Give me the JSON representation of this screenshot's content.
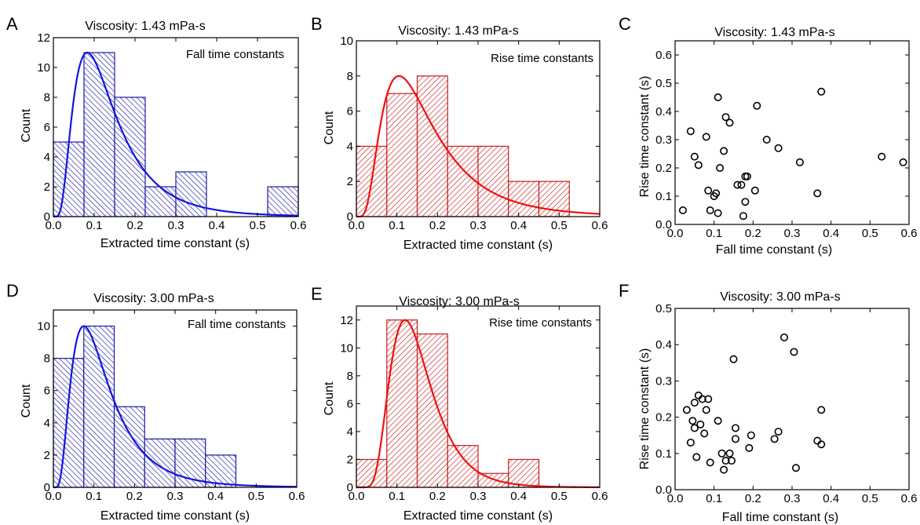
{
  "figure": {
    "panels": [
      {
        "letter": "A",
        "title": "Viscosity: 1.43 mPa-s",
        "annotation": "Fall time constants",
        "xlabel": "Extracted time constant (s)",
        "ylabel": "Count",
        "color": "#1a1aa8",
        "curve_color": "#1414e0"
      },
      {
        "letter": "B",
        "title": "Viscosity: 1.43 mPa-s",
        "annotation": "Rise time constants",
        "xlabel": "Extracted time constant (s)",
        "ylabel": "Count",
        "color": "#c81e1e",
        "curve_color": "#ee1111"
      },
      {
        "letter": "C",
        "title": "Viscosity: 1.43 mPa-s",
        "annotation": "",
        "xlabel": "Fall time constant (s)",
        "ylabel": "Rise time constant (s)",
        "color": "#000000",
        "curve_color": ""
      },
      {
        "letter": "D",
        "title": "Viscosity: 3.00 mPa-s",
        "annotation": "Fall time constants",
        "xlabel": "Extracted time constant (s)",
        "ylabel": "Count",
        "color": "#1a1aa8",
        "curve_color": "#1414e0"
      },
      {
        "letter": "E",
        "title": "Viscosity: 3.00 mPa-s",
        "annotation": "Rise time constants",
        "xlabel": "Extracted time constant (s)",
        "ylabel": "Count",
        "color": "#c81e1e",
        "curve_color": "#ee1111"
      },
      {
        "letter": "F",
        "title": "Viscosity: 3.00 mPa-s",
        "annotation": "",
        "xlabel": "Fall time constant (s)",
        "ylabel": "Rise time constant (s)",
        "color": "#000000",
        "curve_color": ""
      }
    ]
  },
  "chart_data": [
    {
      "type": "bar",
      "bin_edges": [
        0.0,
        0.075,
        0.15,
        0.225,
        0.3,
        0.375,
        0.45,
        0.525,
        0.6
      ],
      "values": [
        5,
        11,
        8,
        2,
        3,
        0,
        0,
        2
      ],
      "fit_curve": {
        "type": "log-normal",
        "peak_x": 0.083,
        "peak_y": 11,
        "x": [
          0.0,
          0.6
        ]
      },
      "xlim": [
        0,
        0.6
      ],
      "ylim": [
        0,
        12
      ],
      "xticks": [
        0.0,
        0.1,
        0.2,
        0.3,
        0.4,
        0.5,
        0.6
      ],
      "yticks": [
        0,
        2,
        4,
        6,
        8,
        10,
        12
      ]
    },
    {
      "type": "bar",
      "bin_edges": [
        0.0,
        0.075,
        0.15,
        0.225,
        0.3,
        0.375,
        0.45,
        0.525,
        0.6
      ],
      "values": [
        4,
        7,
        8,
        4,
        4,
        2,
        2,
        0
      ],
      "fit_curve": {
        "type": "log-normal",
        "peak_x": 0.105,
        "peak_y": 8,
        "x": [
          0.0,
          0.6
        ]
      },
      "xlim": [
        0,
        0.6
      ],
      "ylim": [
        0,
        10
      ],
      "xticks": [
        0.0,
        0.1,
        0.2,
        0.3,
        0.4,
        0.5,
        0.6
      ],
      "yticks": [
        0,
        2,
        4,
        6,
        8,
        10
      ]
    },
    {
      "type": "scatter",
      "x": [
        0.02,
        0.04,
        0.05,
        0.06,
        0.08,
        0.085,
        0.09,
        0.1,
        0.105,
        0.11,
        0.11,
        0.115,
        0.125,
        0.13,
        0.14,
        0.16,
        0.17,
        0.175,
        0.18,
        0.18,
        0.185,
        0.205,
        0.21,
        0.235,
        0.265,
        0.32,
        0.365,
        0.375,
        0.53,
        0.585
      ],
      "y": [
        0.05,
        0.33,
        0.24,
        0.21,
        0.31,
        0.12,
        0.05,
        0.1,
        0.11,
        0.45,
        0.04,
        0.2,
        0.26,
        0.38,
        0.36,
        0.14,
        0.14,
        0.03,
        0.17,
        0.08,
        0.17,
        0.12,
        0.42,
        0.3,
        0.27,
        0.22,
        0.11,
        0.47,
        0.24,
        0.22
      ],
      "xlim": [
        0,
        0.6
      ],
      "ylim": [
        0,
        0.65
      ],
      "xticks": [
        0.0,
        0.1,
        0.2,
        0.3,
        0.4,
        0.5,
        0.6
      ],
      "yticks": [
        0.0,
        0.1,
        0.2,
        0.3,
        0.4,
        0.5,
        0.6
      ]
    },
    {
      "type": "bar",
      "bin_edges": [
        0.0,
        0.075,
        0.15,
        0.225,
        0.3,
        0.375,
        0.45,
        0.525,
        0.6
      ],
      "values": [
        8,
        10,
        5,
        3,
        3,
        2,
        0,
        0
      ],
      "fit_curve": {
        "type": "log-normal",
        "peak_x": 0.075,
        "peak_y": 10,
        "x": [
          0.0,
          0.6
        ]
      },
      "xlim": [
        0,
        0.6
      ],
      "ylim": [
        0,
        11
      ],
      "xticks": [
        0.0,
        0.1,
        0.2,
        0.3,
        0.4,
        0.5,
        0.6
      ],
      "yticks": [
        0,
        2,
        4,
        6,
        8,
        10
      ]
    },
    {
      "type": "bar",
      "bin_edges": [
        0.0,
        0.075,
        0.15,
        0.225,
        0.3,
        0.375,
        0.45,
        0.525,
        0.6
      ],
      "values": [
        2,
        12,
        11,
        3,
        1,
        2,
        0,
        0
      ],
      "fit_curve": {
        "type": "log-normal",
        "peak_x": 0.12,
        "peak_y": 12,
        "x": [
          0.0,
          0.6
        ]
      },
      "xlim": [
        0,
        0.6
      ],
      "ylim": [
        0,
        13
      ],
      "xticks": [
        0.0,
        0.1,
        0.2,
        0.3,
        0.4,
        0.5,
        0.6
      ],
      "yticks": [
        0,
        2,
        4,
        6,
        8,
        10,
        12
      ]
    },
    {
      "type": "scatter",
      "x": [
        0.03,
        0.04,
        0.045,
        0.05,
        0.05,
        0.055,
        0.06,
        0.065,
        0.07,
        0.075,
        0.08,
        0.085,
        0.09,
        0.11,
        0.12,
        0.125,
        0.13,
        0.14,
        0.145,
        0.15,
        0.155,
        0.155,
        0.19,
        0.195,
        0.255,
        0.265,
        0.28,
        0.305,
        0.31,
        0.365,
        0.375,
        0.375
      ],
      "y": [
        0.22,
        0.13,
        0.19,
        0.17,
        0.24,
        0.09,
        0.26,
        0.18,
        0.25,
        0.155,
        0.22,
        0.25,
        0.075,
        0.19,
        0.1,
        0.055,
        0.08,
        0.1,
        0.08,
        0.36,
        0.14,
        0.17,
        0.115,
        0.15,
        0.14,
        0.16,
        0.42,
        0.38,
        0.06,
        0.135,
        0.125,
        0.22
      ],
      "xlim": [
        0,
        0.6
      ],
      "ylim": [
        0,
        0.5
      ],
      "xticks": [
        0.0,
        0.1,
        0.2,
        0.3,
        0.4,
        0.5,
        0.6
      ],
      "yticks": [
        0.0,
        0.1,
        0.2,
        0.3,
        0.4,
        0.5
      ]
    }
  ]
}
